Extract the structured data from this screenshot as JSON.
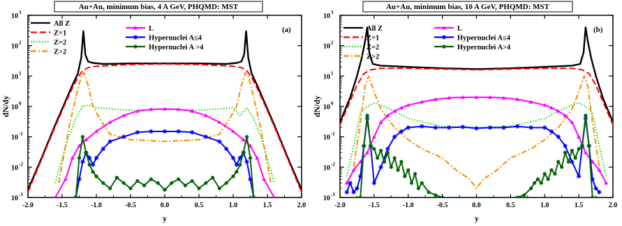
{
  "chart_data": [
    {
      "type": "line",
      "title": "Au+Au, minimum bias, 4 A GeV, PHQMD: MST",
      "panel_label": "(a)",
      "xlabel": "y",
      "ylabel": "dN/dy",
      "xlim": [
        -2.0,
        2.0
      ],
      "ylim": [
        0.001,
        1000
      ],
      "yscale": "log",
      "x_ticks": [
        "-2.0",
        "-1.5",
        "-1.0",
        "-0.5",
        "0.0",
        "0.5",
        "1.0",
        "1.5",
        "2.0"
      ],
      "y_ticks": [
        {
          "base": "10",
          "exp": "-3"
        },
        {
          "base": "10",
          "exp": "-2"
        },
        {
          "base": "10",
          "exp": "-1"
        },
        {
          "base": "10",
          "exp": "0"
        },
        {
          "base": "10",
          "exp": "1"
        },
        {
          "base": "10",
          "exp": "2"
        },
        {
          "base": "10",
          "exp": "3"
        }
      ],
      "legend_left": [
        "All Z",
        "Z=1",
        "Z=2",
        "Z>2"
      ],
      "legend_right": [
        "L",
        "Hypernuclei A≤4",
        "Hypernuclei A >4"
      ],
      "series": [
        {
          "name": "All Z",
          "color": "#000000",
          "style": "solid",
          "marker": "none",
          "x": [
            -2.0,
            -1.8,
            -1.6,
            -1.45,
            -1.35,
            -1.27,
            -1.22,
            -1.19,
            -1.16,
            -1.12,
            -1.05,
            -0.9,
            -0.5,
            0.0,
            0.5,
            0.9,
            1.05,
            1.12,
            1.16,
            1.19,
            1.22,
            1.27,
            1.35,
            1.45,
            1.6,
            1.8,
            2.0
          ],
          "y": [
            0.0018,
            0.02,
            0.25,
            1.5,
            5,
            12,
            40,
            300,
            50,
            30,
            27,
            25,
            26,
            26,
            26,
            25,
            27,
            30,
            50,
            300,
            40,
            12,
            5,
            1.5,
            0.25,
            0.02,
            0.0018
          ]
        },
        {
          "name": "Z=1",
          "color": "#ff0000",
          "style": "dash",
          "marker": "none",
          "x": [
            -2.0,
            -1.8,
            -1.6,
            -1.45,
            -1.35,
            -1.27,
            -1.2,
            -1.12,
            -1.0,
            -0.5,
            0.0,
            0.5,
            1.0,
            1.12,
            1.2,
            1.27,
            1.35,
            1.45,
            1.6,
            1.8,
            2.0
          ],
          "y": [
            0.0015,
            0.018,
            0.22,
            1.3,
            4,
            9,
            15,
            19,
            21,
            24,
            25,
            24,
            21,
            19,
            15,
            9,
            4,
            1.3,
            0.22,
            0.018,
            0.0015
          ]
        },
        {
          "name": "Z=2",
          "color": "#00dd00",
          "style": "dot",
          "marker": "none",
          "x": [
            -1.6,
            -1.45,
            -1.3,
            -1.2,
            -1.1,
            -1.0,
            -0.7,
            -0.5,
            0.0,
            0.5,
            0.7,
            1.0,
            1.1,
            1.2,
            1.3,
            1.45,
            1.6
          ],
          "y": [
            0.003,
            0.05,
            0.4,
            1.0,
            1.1,
            0.9,
            0.8,
            0.75,
            0.8,
            0.75,
            0.8,
            0.9,
            0.5,
            0.9,
            0.4,
            0.05,
            0.003
          ]
        },
        {
          "name": "Z>2",
          "color": "#ff8800",
          "style": "dashdot",
          "marker": "none",
          "x": [
            -1.55,
            -1.4,
            -1.3,
            -1.22,
            -1.18,
            -1.12,
            -1.05,
            -0.95,
            -0.8,
            -0.5,
            0.0,
            0.5,
            0.8,
            0.95,
            1.05,
            1.12,
            1.18,
            1.22,
            1.3,
            1.4,
            1.55
          ],
          "y": [
            0.003,
            0.2,
            2,
            10,
            13,
            5,
            1.0,
            0.4,
            0.12,
            0.08,
            0.07,
            0.08,
            0.12,
            0.4,
            1.0,
            5,
            13,
            10,
            2,
            0.2,
            0.003
          ]
        },
        {
          "name": "L",
          "color": "#ff00ff",
          "style": "solid",
          "marker": "triangle",
          "x": [
            -1.6,
            -1.45,
            -1.35,
            -1.25,
            -1.15,
            -1.0,
            -0.8,
            -0.6,
            -0.4,
            -0.2,
            0.0,
            0.2,
            0.4,
            0.6,
            0.8,
            1.0,
            1.15,
            1.25,
            1.35,
            1.45,
            1.6
          ],
          "y": [
            0.001,
            0.004,
            0.02,
            0.05,
            0.08,
            0.15,
            0.3,
            0.5,
            0.7,
            0.8,
            0.82,
            0.8,
            0.7,
            0.5,
            0.3,
            0.15,
            0.08,
            0.05,
            0.02,
            0.004,
            0.001
          ]
        },
        {
          "name": "Hypernuclei A≤4",
          "color": "#0000ff",
          "style": "solid",
          "marker": "star",
          "x": [
            -1.3,
            -1.25,
            -1.2,
            -1.15,
            -1.1,
            -1.05,
            -1.0,
            -0.9,
            -0.8,
            -0.6,
            -0.4,
            -0.2,
            0.0,
            0.2,
            0.4,
            0.6,
            0.8,
            0.9,
            1.0,
            1.05,
            1.1,
            1.15,
            1.2,
            1.25,
            1.3,
            1.35
          ],
          "y": [
            0.001,
            0.004,
            0.015,
            0.03,
            0.02,
            0.012,
            0.02,
            0.04,
            0.07,
            0.1,
            0.14,
            0.15,
            0.15,
            0.15,
            0.14,
            0.1,
            0.07,
            0.04,
            0.02,
            0.012,
            0.02,
            0.03,
            0.015,
            0.004,
            0.001,
            0.0006
          ]
        },
        {
          "name": "Hypernuclei A >4",
          "color": "#006600",
          "style": "solid",
          "marker": "circle",
          "x": [
            -1.3,
            -1.25,
            -1.2,
            -1.15,
            -1.1,
            -1.05,
            -1.0,
            -0.9,
            -0.8,
            -0.7,
            -0.6,
            -0.5,
            -0.4,
            -0.3,
            -0.2,
            -0.1,
            0.0,
            0.1,
            0.2,
            0.3,
            0.4,
            0.5,
            0.6,
            0.7,
            0.8,
            0.9,
            1.0,
            1.05,
            1.1,
            1.15,
            1.2,
            1.25,
            1.3
          ],
          "y": [
            0.001,
            0.02,
            0.1,
            0.03,
            0.012,
            0.007,
            0.005,
            0.003,
            0.002,
            0.0045,
            0.003,
            0.002,
            0.0035,
            0.0025,
            0.004,
            0.003,
            0.0018,
            0.003,
            0.004,
            0.0025,
            0.0035,
            0.002,
            0.003,
            0.0045,
            0.002,
            0.003,
            0.005,
            0.007,
            0.012,
            0.03,
            0.1,
            0.02,
            0.001
          ]
        }
      ]
    },
    {
      "type": "line",
      "title": "Au+Au, minimum bias, 10 A GeV, PHQMD: MST",
      "panel_label": "(b)",
      "xlabel": "y",
      "ylabel": "dN/dy",
      "xlim": [
        -2.0,
        2.0
      ],
      "ylim": [
        0.001,
        1000
      ],
      "yscale": "log",
      "x_ticks": [
        "-2.0",
        "-1.5",
        "-1.0",
        "-0.5",
        "0.0",
        "0.5",
        "1.0",
        "1.5",
        "2.0"
      ],
      "y_ticks": [
        {
          "base": "10",
          "exp": "-3"
        },
        {
          "base": "10",
          "exp": "-2"
        },
        {
          "base": "10",
          "exp": "-1"
        },
        {
          "base": "10",
          "exp": "0"
        },
        {
          "base": "10",
          "exp": "1"
        },
        {
          "base": "10",
          "exp": "2"
        },
        {
          "base": "10",
          "exp": "3"
        }
      ],
      "legend_left": [
        "All Z",
        "Z=1",
        "Z=2",
        "Z>2"
      ],
      "legend_right": [
        "L",
        "Hypernuclei A≤4",
        "Hypernuclei A>4"
      ],
      "series": [
        {
          "name": "All Z",
          "color": "#000000",
          "style": "solid",
          "marker": "none",
          "x": [
            -2.0,
            -1.85,
            -1.75,
            -1.68,
            -1.63,
            -1.6,
            -1.57,
            -1.52,
            -1.4,
            -1.0,
            -0.5,
            0.0,
            0.5,
            1.0,
            1.4,
            1.52,
            1.57,
            1.6,
            1.63,
            1.68,
            1.75,
            1.85,
            2.0
          ],
          "y": [
            0.3,
            2,
            10,
            40,
            150,
            400,
            60,
            25,
            22,
            20,
            18,
            17,
            18,
            20,
            22,
            25,
            60,
            400,
            150,
            40,
            10,
            2,
            0.3
          ]
        },
        {
          "name": "Z=1",
          "color": "#ff0000",
          "style": "dash",
          "marker": "none",
          "x": [
            -2.0,
            -1.85,
            -1.75,
            -1.65,
            -1.55,
            -1.4,
            -1.0,
            -0.5,
            0.0,
            0.5,
            1.0,
            1.4,
            1.55,
            1.65,
            1.75,
            1.85,
            2.0
          ],
          "y": [
            0.25,
            1.5,
            5,
            12,
            16,
            18,
            18,
            17,
            16,
            17,
            18,
            18,
            16,
            12,
            5,
            1.5,
            0.25
          ]
        },
        {
          "name": "Z=2",
          "color": "#00dd00",
          "style": "dot",
          "marker": "none",
          "x": [
            -1.9,
            -1.8,
            -1.7,
            -1.6,
            -1.5,
            -1.4,
            -1.2,
            -1.0,
            -0.5,
            0.0,
            0.5,
            1.0,
            1.2,
            1.4,
            1.5,
            1.6,
            1.7,
            1.8,
            1.9
          ],
          "y": [
            0.005,
            0.05,
            0.6,
            1.0,
            1.3,
            1.1,
            0.7,
            0.4,
            0.22,
            0.2,
            0.22,
            0.4,
            0.7,
            1.1,
            1.3,
            1.0,
            0.6,
            0.05,
            0.005
          ]
        },
        {
          "name": "Z>2",
          "color": "#ff8800",
          "style": "dashdot",
          "marker": "none",
          "x": [
            -1.8,
            -1.7,
            -1.63,
            -1.58,
            -1.5,
            -1.4,
            -1.2,
            -1.0,
            -0.8,
            -0.5,
            -0.3,
            -0.1,
            0.0,
            0.1,
            0.3,
            0.5,
            0.8,
            1.0,
            1.2,
            1.4,
            1.5,
            1.58,
            1.63,
            1.7,
            1.8
          ],
          "y": [
            0.01,
            0.3,
            5,
            10,
            3,
            0.8,
            0.2,
            0.08,
            0.04,
            0.02,
            0.008,
            0.004,
            0.002,
            0.004,
            0.008,
            0.02,
            0.04,
            0.08,
            0.2,
            0.8,
            3,
            10,
            5,
            0.3,
            0.01
          ]
        },
        {
          "name": "L",
          "color": "#ff00ff",
          "style": "solid",
          "marker": "triangle",
          "x": [
            -1.9,
            -1.8,
            -1.7,
            -1.6,
            -1.5,
            -1.4,
            -1.3,
            -1.2,
            -1.1,
            -1.0,
            -0.8,
            -0.6,
            -0.4,
            -0.2,
            0.0,
            0.2,
            0.4,
            0.6,
            0.8,
            1.0,
            1.1,
            1.2,
            1.3,
            1.4,
            1.5,
            1.6,
            1.7,
            1.8,
            1.9
          ],
          "y": [
            0.003,
            0.008,
            0.015,
            0.03,
            0.1,
            0.3,
            0.5,
            0.7,
            0.9,
            1.1,
            1.4,
            1.7,
            1.9,
            2.0,
            2.0,
            2.0,
            1.9,
            1.7,
            1.4,
            1.1,
            0.9,
            0.7,
            0.5,
            0.3,
            0.1,
            0.03,
            0.015,
            0.008,
            0.003
          ]
        },
        {
          "name": "Hypernuclei A≤4",
          "color": "#0000ff",
          "style": "solid",
          "marker": "star",
          "x": [
            -1.9,
            -1.85,
            -1.8,
            -1.75,
            -1.7,
            -1.65,
            -1.6,
            -1.55,
            -1.5,
            -1.4,
            -1.3,
            -1.2,
            -1.1,
            -1.0,
            -0.8,
            -0.6,
            -0.4,
            -0.2,
            0.0,
            0.2,
            0.4,
            0.6,
            0.8,
            1.0,
            1.1,
            1.2,
            1.3,
            1.4,
            1.5,
            1.55,
            1.6,
            1.65,
            1.7,
            1.75,
            1.8
          ],
          "y": [
            0.0015,
            0.003,
            0.0015,
            0.002,
            0.005,
            0.05,
            0.4,
            0.05,
            0.003,
            0.01,
            0.04,
            0.1,
            0.15,
            0.2,
            0.22,
            0.2,
            0.2,
            0.21,
            0.19,
            0.2,
            0.2,
            0.22,
            0.2,
            0.2,
            0.15,
            0.1,
            0.05,
            0.015,
            0.005,
            0.05,
            0.4,
            0.05,
            0.004,
            0.002,
            0.0015
          ]
        },
        {
          "name": "Hypernuclei A>4",
          "color": "#006600",
          "style": "solid",
          "marker": "circle",
          "x": [
            -1.7,
            -1.65,
            -1.6,
            -1.55,
            -1.5,
            -1.45,
            -1.4,
            -1.35,
            -1.3,
            -1.25,
            -1.2,
            -1.15,
            -1.1,
            -1.05,
            -1.0,
            -0.95,
            -0.9,
            -0.85,
            -0.8,
            -0.7,
            -0.6,
            -0.5,
            0.6,
            0.7,
            0.8,
            0.85,
            0.9,
            0.95,
            1.0,
            1.05,
            1.1,
            1.15,
            1.2,
            1.25,
            1.3,
            1.35,
            1.4,
            1.45,
            1.5,
            1.55,
            1.6,
            1.65,
            1.7
          ],
          "y": [
            0.001,
            0.05,
            0.5,
            0.05,
            0.04,
            0.02,
            0.035,
            0.015,
            0.03,
            0.01,
            0.02,
            0.008,
            0.015,
            0.005,
            0.008,
            0.003,
            0.006,
            0.002,
            0.003,
            0.0015,
            0.0012,
            0.001,
            0.001,
            0.0012,
            0.002,
            0.003,
            0.004,
            0.003,
            0.006,
            0.004,
            0.008,
            0.006,
            0.015,
            0.01,
            0.03,
            0.015,
            0.035,
            0.02,
            0.04,
            0.05,
            0.5,
            0.05,
            0.001
          ]
        }
      ]
    }
  ]
}
